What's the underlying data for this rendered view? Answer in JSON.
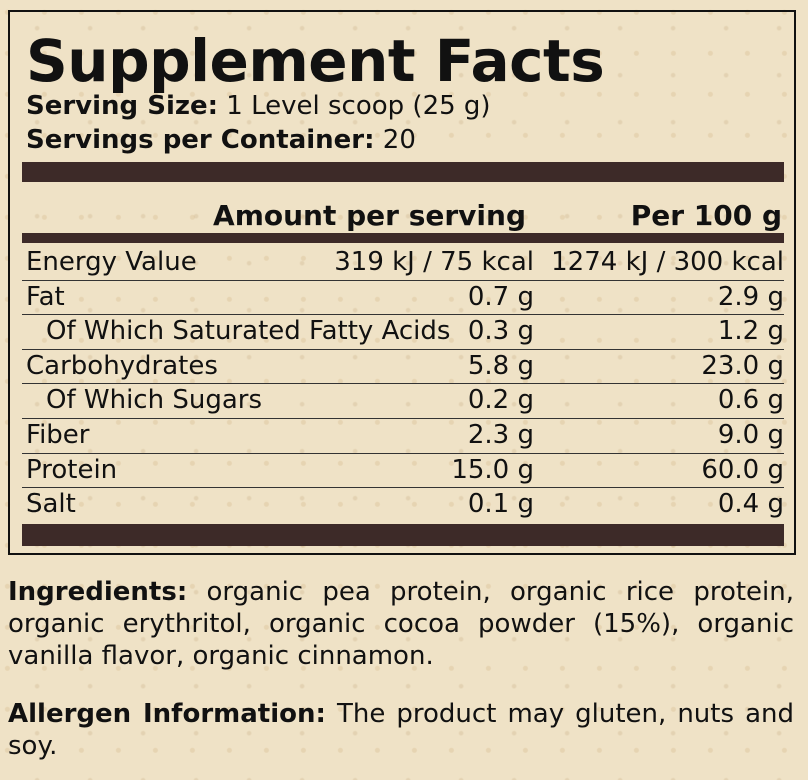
{
  "title": "Supplement Facts",
  "serving_size": {
    "label": "Serving Size:",
    "value": "1 Level scoop (25 g)"
  },
  "servings_per_container": {
    "label": "Servings per Container:",
    "value": "20"
  },
  "columns": {
    "amount": "Amount per serving",
    "per100": "Per 100 g"
  },
  "rows": [
    {
      "name": "Energy Value",
      "amount": "319 kJ / 75 kcal",
      "per100": "1274 kJ / 300 kcal",
      "indent": false
    },
    {
      "name": "Fat",
      "amount": "0.7 g",
      "per100": "2.9 g",
      "indent": false
    },
    {
      "name": "Of Which Saturated Fatty Acids",
      "amount": "0.3 g",
      "per100": "1.2 g",
      "indent": true
    },
    {
      "name": "Carbohydrates",
      "amount": "5.8 g",
      "per100": "23.0 g",
      "indent": false
    },
    {
      "name": "Of Which Sugars",
      "amount": "0.2 g",
      "per100": "0.6 g",
      "indent": true
    },
    {
      "name": "Fiber",
      "amount": "2.3 g",
      "per100": "9.0 g",
      "indent": false
    },
    {
      "name": "Protein",
      "amount": "15.0 g",
      "per100": "60.0 g",
      "indent": false
    },
    {
      "name": "Salt",
      "amount": "0.1 g",
      "per100": "0.4 g",
      "indent": false
    }
  ],
  "ingredients": {
    "label": "Ingredients:",
    "text": "organic pea protein, organic rice protein, organic erythritol, organic cocoa powder (15%), organic vanilla flavor, organic cinnamon."
  },
  "allergen": {
    "label": "Allergen Information:",
    "text": "The product may gluten, nuts and soy."
  },
  "colors": {
    "background": "#efe2c6",
    "bar": "#3d2a28"
  }
}
